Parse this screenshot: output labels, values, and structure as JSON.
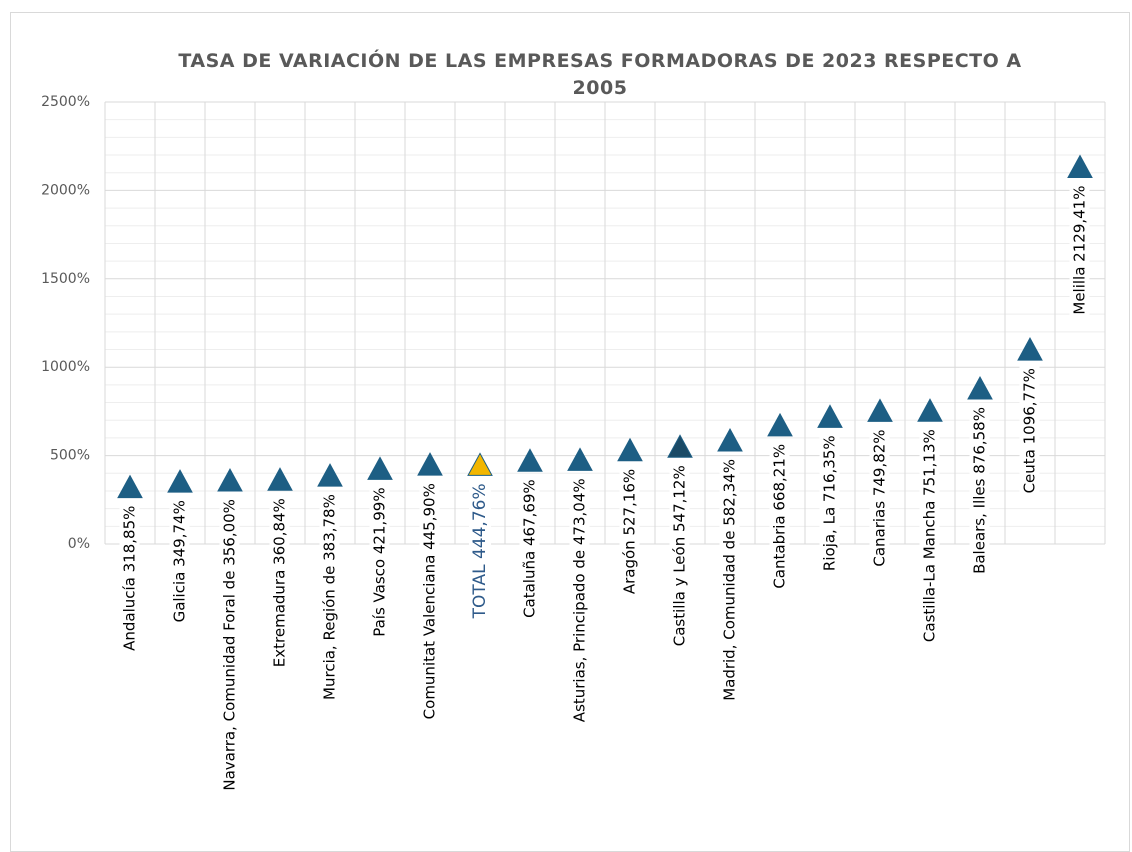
{
  "chart_data": {
    "type": "scatter",
    "title": "TASA DE VARIACIÓN DE LAS EMPRESAS FORMADORAS DE 2023 RESPECTO A 2005",
    "categories": [
      "Andalucía 318,85%",
      "Galicia 349,74%",
      "Navarra, Comunidad Foral de 356,00%",
      "Extremadura 360,84%",
      "Murcia, Región de 383,78%",
      "País Vasco 421,99%",
      "Comunitat Valenciana 445,90%",
      "TOTAL 444,76%",
      "Cataluña 467,69%",
      "Asturias, Principado de 473,04%",
      "Aragón 527,16%",
      "Castilla y León 547,12%",
      "Madrid, Comunidad de 582,34%",
      "Cantabria 668,21%",
      "Rioja, La 716,35%",
      "Canarias 749,82%",
      "Castilla-La Mancha 751,13%",
      "Balears, Illes 876,58%",
      "Ceuta 1096,77%",
      "Melilla 2129,41%"
    ],
    "values": [
      318.85,
      349.74,
      356.0,
      360.84,
      383.78,
      421.99,
      445.9,
      444.76,
      467.69,
      473.04,
      527.16,
      547.12,
      582.34,
      668.21,
      716.35,
      749.82,
      751.13,
      876.58,
      1096.77,
      2129.41
    ],
    "colors": [
      "#1d5e84",
      "#1d5e84",
      "#1d5e84",
      "#1d5e84",
      "#1d5e84",
      "#1d5e84",
      "#1d5e84",
      "#f2b600",
      "#1d5e84",
      "#1d5e84",
      "#1d5e84",
      "#1a4a66",
      "#1d5e84",
      "#1d5e84",
      "#1d5e84",
      "#1d5e84",
      "#1d5e84",
      "#1d5e84",
      "#1d5e84",
      "#1d5e84"
    ],
    "label_colors": [
      "#000000",
      "#000000",
      "#000000",
      "#000000",
      "#000000",
      "#000000",
      "#000000",
      "#2e5a8a",
      "#000000",
      "#000000",
      "#000000",
      "#000000",
      "#000000",
      "#000000",
      "#000000",
      "#000000",
      "#000000",
      "#000000",
      "#000000",
      "#000000"
    ],
    "ylim": [
      0,
      2500
    ],
    "yticks": [
      {
        "value": 0,
        "label": "0%"
      },
      {
        "value": 500,
        "label": "500%"
      },
      {
        "value": 1000,
        "label": "1000%"
      },
      {
        "value": 1500,
        "label": "1500%"
      },
      {
        "value": 2000,
        "label": "2000%"
      },
      {
        "value": 2500,
        "label": "2500%"
      }
    ],
    "grid": true
  }
}
